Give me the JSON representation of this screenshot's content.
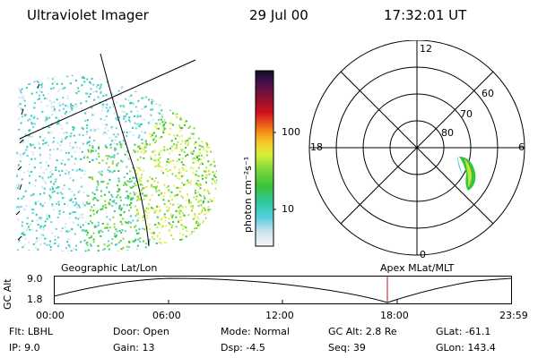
{
  "header": {
    "instrument": "Ultraviolet Imager",
    "date": "29 Jul 00",
    "time": "17:32:01 UT"
  },
  "colorbar": {
    "unit_label": "photon cm⁻²s⁻¹",
    "ticks": [
      "100",
      "10"
    ]
  },
  "polar": {
    "hour_labels": {
      "top": "12",
      "left": "18",
      "right": "6",
      "bottom": "0"
    },
    "lat_labels": [
      "60",
      "70",
      "80"
    ]
  },
  "timeline": {
    "y_axis_label": "GC Alt",
    "y_ticks": [
      "9.0",
      "1.8"
    ],
    "left_caption": "Geographic Lat/Lon",
    "right_caption": "Apex MLat/MLT",
    "x_ticks": [
      "00:00",
      "06:00",
      "12:00",
      "18:00",
      "23:59"
    ]
  },
  "footer": {
    "flt": "Flt: LBHL",
    "ip": "IP:  9.0",
    "door": "Door: Open",
    "gain": "Gain: 13",
    "mode": "Mode: Normal",
    "dsp": "Dsp:    -4.5",
    "gc_alt": "GC Alt: 2.8 Re",
    "seq": "Seq: 39",
    "glat": "GLat: -61.1",
    "glon": "GLon: 143.4"
  },
  "colors": {
    "marker": "#d01010"
  }
}
